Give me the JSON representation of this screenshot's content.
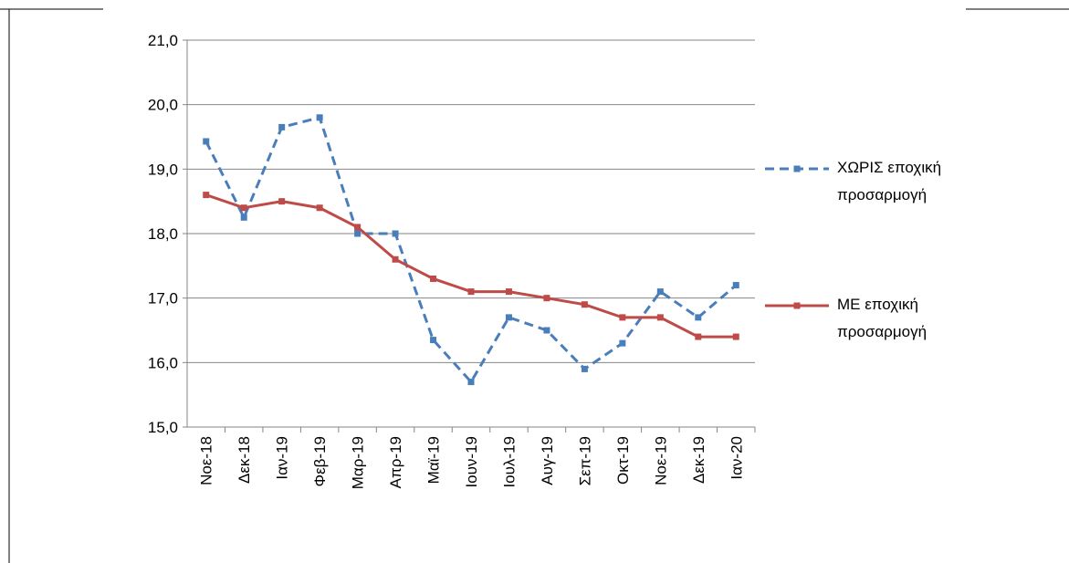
{
  "chart_data": {
    "type": "line",
    "categories": [
      "Νοε-18",
      "Δεκ-18",
      "Ιαν-19",
      "Φεβ-19",
      "Μαρ-19",
      "Απρ-19",
      "Μαϊ-19",
      "Ιουν-19",
      "Ιουλ-19",
      "Αυγ-19",
      "Σεπ-19",
      "Οκτ-19",
      "Νοε-19",
      "Δεκ-19",
      "Ιαν-20"
    ],
    "series": [
      {
        "name": "ΧΩΡΙΣ εποχική προσαρμογή",
        "color": "#4a7ebb",
        "dashed": true,
        "values": [
          19.43,
          18.25,
          19.65,
          19.8,
          18.0,
          18.0,
          16.35,
          15.7,
          16.7,
          16.5,
          15.9,
          16.3,
          17.1,
          16.7,
          17.2
        ]
      },
      {
        "name": "ΜΕ εποχική προσαρμογή",
        "color": "#be4b48",
        "dashed": false,
        "values": [
          18.6,
          18.4,
          18.5,
          18.4,
          18.1,
          17.6,
          17.3,
          17.1,
          17.1,
          17.0,
          16.9,
          16.7,
          16.7,
          16.4,
          16.4
        ]
      }
    ],
    "ylim": [
      15,
      21
    ],
    "yticks": [
      {
        "value": 15,
        "label": "15,0"
      },
      {
        "value": 16,
        "label": "16,0"
      },
      {
        "value": 17,
        "label": "17,0"
      },
      {
        "value": 18,
        "label": "18,0"
      },
      {
        "value": 19,
        "label": "19,0"
      },
      {
        "value": 20,
        "label": "20,0"
      },
      {
        "value": 21,
        "label": "21,0"
      }
    ],
    "grid": true,
    "legend": "right"
  }
}
